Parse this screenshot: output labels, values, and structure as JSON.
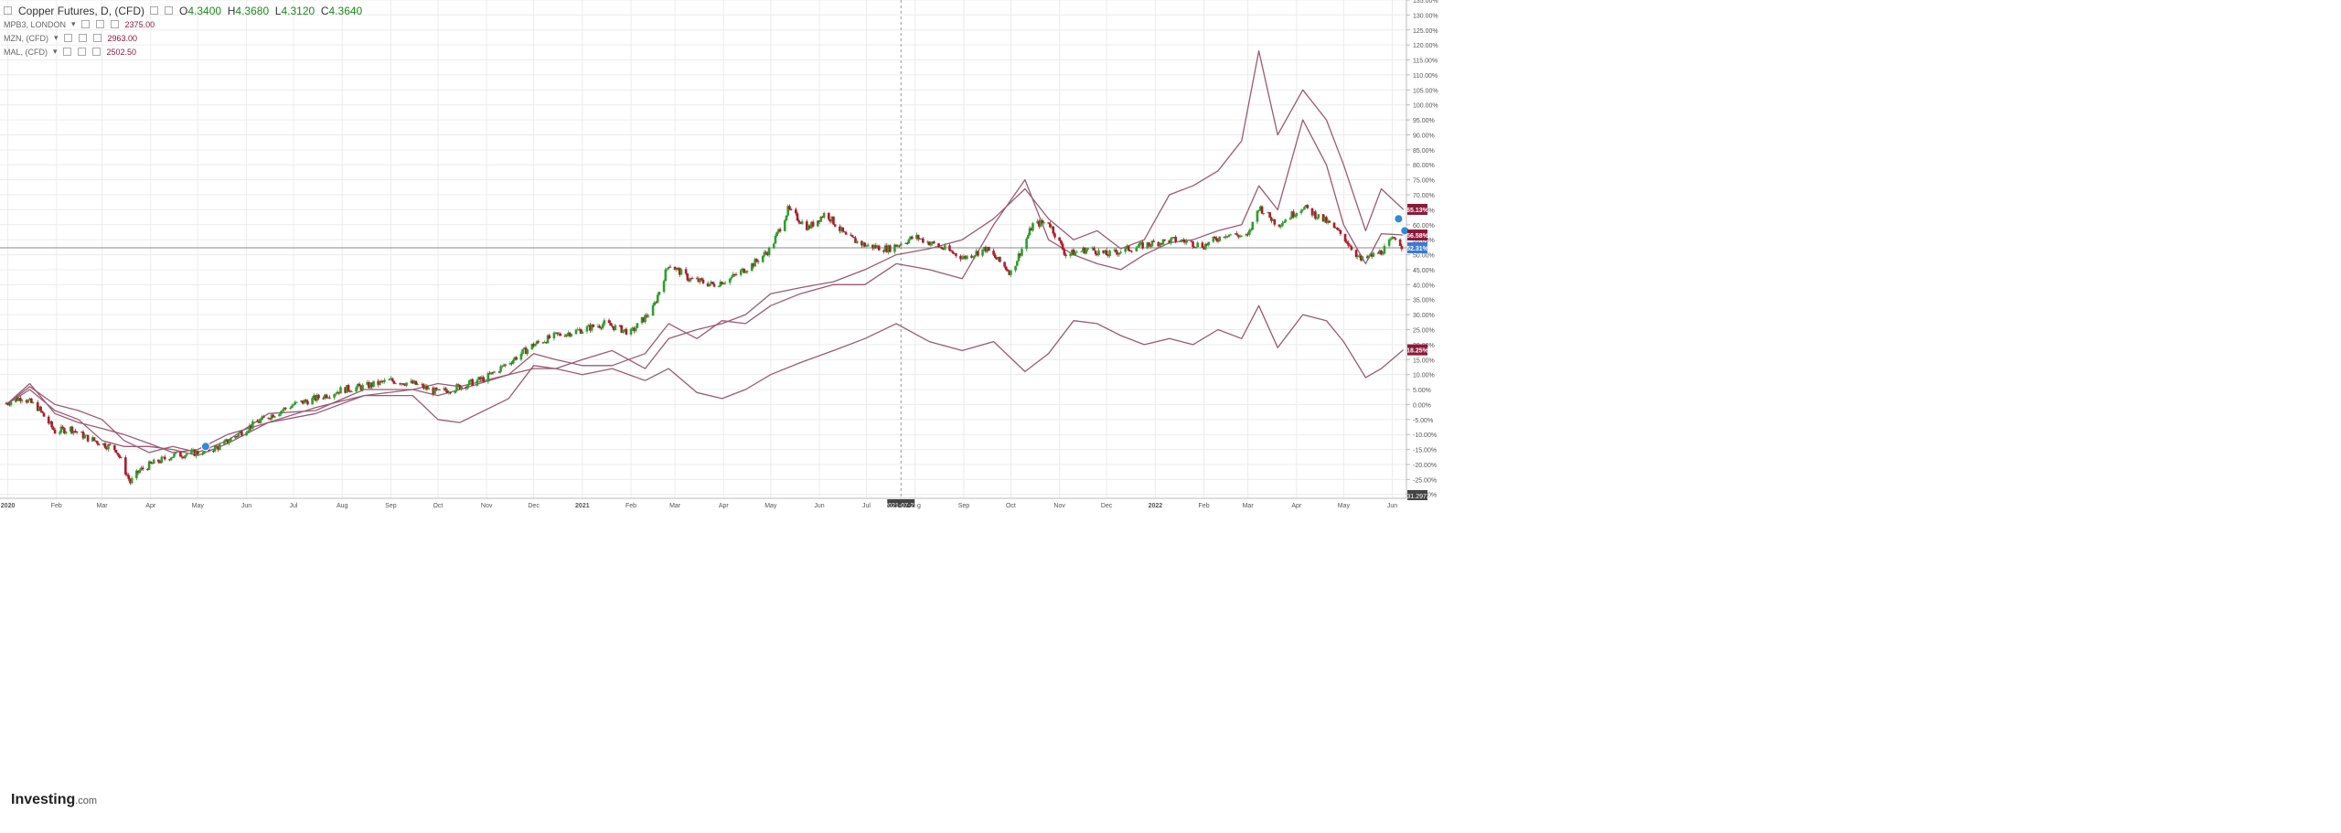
{
  "legend": {
    "main": {
      "title": "Copper Futures, D, (CFD)",
      "open_label": "O",
      "open": "4.3400",
      "high_label": "H",
      "high": "4.3680",
      "low_label": "L",
      "low": "4.3120",
      "close_label": "C",
      "close": "4.3640"
    },
    "overlays": [
      {
        "symbol": "MPB3, LONDON",
        "value": "2375.00"
      },
      {
        "symbol": "MZN, (CFD)",
        "value": "2963.00"
      },
      {
        "symbol": "MAL, (CFD)",
        "value": "2502.50"
      }
    ]
  },
  "watermark": {
    "brand": "Investing",
    "suffix": ".com"
  },
  "colors": {
    "up": "#2ca02c",
    "down": "#b01a2a",
    "overlay_line": "#9b5a74",
    "grid": "#ececec",
    "axis_text": "#555555",
    "badge_overlay": "#8b1a3a",
    "badge_price": "#3a7bd5",
    "crosshair": "#999999",
    "current_line": "#888888"
  },
  "chart_data": {
    "type": "line",
    "xlabel": "",
    "ylabel": "",
    "y_unit": "%",
    "ylim": [
      -31.3,
      135
    ],
    "x_range": [
      "2019-12-27",
      "2022-06-10"
    ],
    "grid": true,
    "y_ticks": [
      "135.00%",
      "130.00%",
      "125.00%",
      "120.00%",
      "115.00%",
      "110.00%",
      "105.00%",
      "100.00%",
      "95.00%",
      "90.00%",
      "85.00%",
      "80.00%",
      "75.00%",
      "70.00%",
      "65.00%",
      "60.00%",
      "55.00%",
      "50.00%",
      "45.00%",
      "40.00%",
      "35.00%",
      "30.00%",
      "25.00%",
      "20.00%",
      "15.00%",
      "10.00%",
      "5.00%",
      "0.00%",
      "-5.00%",
      "-10.00%",
      "-15.00%",
      "-20.00%",
      "-25.00%",
      "-30.00%"
    ],
    "x_ticks": [
      {
        "date": "2020-01-01",
        "label": "2020",
        "bold": true
      },
      {
        "date": "2020-02-01",
        "label": "Feb"
      },
      {
        "date": "2020-03-01",
        "label": "Mar"
      },
      {
        "date": "2020-04-01",
        "label": "Apr"
      },
      {
        "date": "2020-05-01",
        "label": "May"
      },
      {
        "date": "2020-06-01",
        "label": "Jun"
      },
      {
        "date": "2020-07-01",
        "label": "Jul"
      },
      {
        "date": "2020-08-01",
        "label": "Aug"
      },
      {
        "date": "2020-09-01",
        "label": "Sep"
      },
      {
        "date": "2020-10-01",
        "label": "Oct"
      },
      {
        "date": "2020-11-01",
        "label": "Nov"
      },
      {
        "date": "2020-12-01",
        "label": "Dec"
      },
      {
        "date": "2021-01-01",
        "label": "2021",
        "bold": true
      },
      {
        "date": "2021-02-01",
        "label": "Feb"
      },
      {
        "date": "2021-03-01",
        "label": "Mar"
      },
      {
        "date": "2021-04-01",
        "label": "Apr"
      },
      {
        "date": "2021-05-01",
        "label": "May"
      },
      {
        "date": "2021-06-01",
        "label": "Jun"
      },
      {
        "date": "2021-07-01",
        "label": "Jul"
      },
      {
        "date": "2021-08-01",
        "label": "Aug"
      },
      {
        "date": "2021-09-01",
        "label": "Sep"
      },
      {
        "date": "2021-10-01",
        "label": "Oct"
      },
      {
        "date": "2021-11-01",
        "label": "Nov"
      },
      {
        "date": "2021-12-01",
        "label": "Dec"
      },
      {
        "date": "2022-01-01",
        "label": "2022",
        "bold": true
      },
      {
        "date": "2022-02-01",
        "label": "Feb"
      },
      {
        "date": "2022-03-01",
        "label": "Mar"
      },
      {
        "date": "2022-04-01",
        "label": "Apr"
      },
      {
        "date": "2022-05-01",
        "label": "May"
      },
      {
        "date": "2022-06-01",
        "label": "Jun"
      }
    ],
    "crosshair": {
      "date": "2021-07-23",
      "label": "2021-07-23"
    },
    "current_value_line": 52.31,
    "low_label": {
      "value": -31.3,
      "label": "-31.2973"
    },
    "series": [
      {
        "type": "candlestick",
        "points": [
          [
            "2019-12-31",
            0.5
          ],
          [
            "2020-01-10",
            2.5
          ],
          [
            "2020-01-20",
            -1
          ],
          [
            "2020-01-31",
            -9
          ],
          [
            "2020-02-10",
            -8
          ],
          [
            "2020-02-20",
            -11
          ],
          [
            "2020-03-01",
            -13
          ],
          [
            "2020-03-10",
            -15
          ],
          [
            "2020-03-19",
            -26
          ],
          [
            "2020-03-25",
            -22
          ],
          [
            "2020-04-01",
            -20
          ],
          [
            "2020-04-15",
            -17
          ],
          [
            "2020-05-01",
            -16
          ],
          [
            "2020-05-15",
            -14
          ],
          [
            "2020-06-01",
            -8
          ],
          [
            "2020-06-15",
            -4
          ],
          [
            "2020-07-01",
            0
          ],
          [
            "2020-07-15",
            2
          ],
          [
            "2020-08-01",
            5
          ],
          [
            "2020-08-15",
            6
          ],
          [
            "2020-09-01",
            8
          ],
          [
            "2020-09-15",
            7
          ],
          [
            "2020-10-01",
            4
          ],
          [
            "2020-10-15",
            6
          ],
          [
            "2020-11-01",
            9
          ],
          [
            "2020-11-15",
            14
          ],
          [
            "2020-12-01",
            20
          ],
          [
            "2020-12-15",
            23
          ],
          [
            "2021-01-01",
            25
          ],
          [
            "2021-01-15",
            27
          ],
          [
            "2021-02-01",
            24
          ],
          [
            "2021-02-15",
            32
          ],
          [
            "2021-02-25",
            47
          ],
          [
            "2021-03-10",
            42
          ],
          [
            "2021-03-25",
            40
          ],
          [
            "2021-04-05",
            42
          ],
          [
            "2021-04-20",
            47
          ],
          [
            "2021-05-01",
            52
          ],
          [
            "2021-05-12",
            65
          ],
          [
            "2021-05-25",
            59
          ],
          [
            "2021-06-05",
            64
          ],
          [
            "2021-06-18",
            56
          ],
          [
            "2021-07-01",
            53
          ],
          [
            "2021-07-15",
            52
          ],
          [
            "2021-08-01",
            56
          ],
          [
            "2021-08-15",
            53
          ],
          [
            "2021-09-01",
            49
          ],
          [
            "2021-09-15",
            52
          ],
          [
            "2021-10-01",
            44
          ],
          [
            "2021-10-15",
            60
          ],
          [
            "2021-10-25",
            61
          ],
          [
            "2021-11-05",
            50
          ],
          [
            "2021-11-20",
            52
          ],
          [
            "2021-12-01",
            50
          ],
          [
            "2021-12-15",
            52
          ],
          [
            "2022-01-01",
            54
          ],
          [
            "2022-01-15",
            55
          ],
          [
            "2022-02-01",
            53
          ],
          [
            "2022-02-15",
            57
          ],
          [
            "2022-03-01",
            56
          ],
          [
            "2022-03-08",
            66
          ],
          [
            "2022-03-20",
            60
          ],
          [
            "2022-04-05",
            66
          ],
          [
            "2022-04-20",
            61
          ],
          [
            "2022-05-01",
            56
          ],
          [
            "2022-05-12",
            48
          ],
          [
            "2022-05-25",
            51
          ],
          [
            "2022-06-03",
            56
          ],
          [
            "2022-06-08",
            52.3
          ]
        ]
      },
      {
        "name": "MPB3, LONDON",
        "points": [
          [
            "2019-12-31",
            0
          ],
          [
            "2020-01-15",
            7
          ],
          [
            "2020-01-31",
            -3
          ],
          [
            "2020-02-15",
            -6
          ],
          [
            "2020-03-01",
            -8
          ],
          [
            "2020-03-15",
            -10
          ],
          [
            "2020-03-31",
            -13
          ],
          [
            "2020-04-15",
            -16
          ],
          [
            "2020-05-01",
            -15
          ],
          [
            "2020-05-20",
            -10
          ],
          [
            "2020-06-15",
            -6
          ],
          [
            "2020-07-15",
            -1
          ],
          [
            "2020-08-15",
            3
          ],
          [
            "2020-09-15",
            3
          ],
          [
            "2020-10-01",
            -5
          ],
          [
            "2020-10-15",
            -6
          ],
          [
            "2020-11-15",
            2
          ],
          [
            "2020-12-01",
            13
          ],
          [
            "2020-12-15",
            12
          ],
          [
            "2021-01-01",
            10
          ],
          [
            "2021-01-20",
            12
          ],
          [
            "2021-02-10",
            8
          ],
          [
            "2021-02-25",
            12
          ],
          [
            "2021-03-15",
            4
          ],
          [
            "2021-03-31",
            2
          ],
          [
            "2021-04-15",
            5
          ],
          [
            "2021-05-01",
            10
          ],
          [
            "2021-05-20",
            14
          ],
          [
            "2021-06-10",
            18
          ],
          [
            "2021-06-30",
            22
          ],
          [
            "2021-07-20",
            27
          ],
          [
            "2021-08-10",
            21
          ],
          [
            "2021-08-31",
            18
          ],
          [
            "2021-09-20",
            21
          ],
          [
            "2021-10-10",
            11
          ],
          [
            "2021-10-25",
            17
          ],
          [
            "2021-11-10",
            28
          ],
          [
            "2021-11-25",
            27
          ],
          [
            "2021-12-10",
            23
          ],
          [
            "2021-12-25",
            20
          ],
          [
            "2022-01-10",
            22
          ],
          [
            "2022-01-25",
            20
          ],
          [
            "2022-02-10",
            25
          ],
          [
            "2022-02-25",
            22
          ],
          [
            "2022-03-08",
            33
          ],
          [
            "2022-03-20",
            19
          ],
          [
            "2022-04-05",
            30
          ],
          [
            "2022-04-20",
            28
          ],
          [
            "2022-05-01",
            21
          ],
          [
            "2022-05-15",
            9
          ],
          [
            "2022-05-25",
            12
          ],
          [
            "2022-06-08",
            18.25
          ]
        ]
      },
      {
        "name": "MZN, (CFD)",
        "points": [
          [
            "2019-12-31",
            0
          ],
          [
            "2020-01-15",
            6
          ],
          [
            "2020-01-31",
            0
          ],
          [
            "2020-02-15",
            -2
          ],
          [
            "2020-03-01",
            -5
          ],
          [
            "2020-03-15",
            -12
          ],
          [
            "2020-03-31",
            -16
          ],
          [
            "2020-04-15",
            -14
          ],
          [
            "2020-05-01",
            -16
          ],
          [
            "2020-05-20",
            -12
          ],
          [
            "2020-06-15",
            -3
          ],
          [
            "2020-07-15",
            -2
          ],
          [
            "2020-08-15",
            5
          ],
          [
            "2020-09-15",
            5
          ],
          [
            "2020-10-01",
            3
          ],
          [
            "2020-10-15",
            5
          ],
          [
            "2020-11-15",
            10
          ],
          [
            "2020-12-01",
            17
          ],
          [
            "2020-12-15",
            15
          ],
          [
            "2021-01-01",
            13
          ],
          [
            "2021-01-20",
            13
          ],
          [
            "2021-02-10",
            17
          ],
          [
            "2021-02-25",
            27
          ],
          [
            "2021-03-15",
            22
          ],
          [
            "2021-03-31",
            28
          ],
          [
            "2021-04-15",
            27
          ],
          [
            "2021-05-01",
            33
          ],
          [
            "2021-05-20",
            37
          ],
          [
            "2021-06-10",
            40
          ],
          [
            "2021-06-30",
            40
          ],
          [
            "2021-07-20",
            47
          ],
          [
            "2021-08-10",
            45
          ],
          [
            "2021-08-31",
            42
          ],
          [
            "2021-09-20",
            60
          ],
          [
            "2021-10-10",
            75
          ],
          [
            "2021-10-25",
            55
          ],
          [
            "2021-11-10",
            50
          ],
          [
            "2021-11-25",
            47
          ],
          [
            "2021-12-10",
            45
          ],
          [
            "2021-12-25",
            50
          ],
          [
            "2022-01-10",
            54
          ],
          [
            "2022-01-25",
            55
          ],
          [
            "2022-02-10",
            58
          ],
          [
            "2022-02-25",
            60
          ],
          [
            "2022-03-08",
            73
          ],
          [
            "2022-03-20",
            65
          ],
          [
            "2022-04-05",
            95
          ],
          [
            "2022-04-20",
            80
          ],
          [
            "2022-05-01",
            60
          ],
          [
            "2022-05-15",
            47
          ],
          [
            "2022-05-25",
            57
          ],
          [
            "2022-06-08",
            56.58
          ]
        ]
      },
      {
        "name": "MAL, (CFD)",
        "points": [
          [
            "2019-12-31",
            0
          ],
          [
            "2020-01-15",
            5
          ],
          [
            "2020-01-31",
            -2
          ],
          [
            "2020-02-15",
            -5
          ],
          [
            "2020-03-01",
            -12
          ],
          [
            "2020-03-15",
            -14
          ],
          [
            "2020-03-31",
            -14
          ],
          [
            "2020-04-15",
            -15
          ],
          [
            "2020-05-01",
            -17
          ],
          [
            "2020-05-20",
            -13
          ],
          [
            "2020-06-15",
            -6
          ],
          [
            "2020-07-15",
            -3
          ],
          [
            "2020-08-15",
            3
          ],
          [
            "2020-09-15",
            5
          ],
          [
            "2020-10-01",
            7
          ],
          [
            "2020-10-15",
            6
          ],
          [
            "2020-11-15",
            10
          ],
          [
            "2020-12-01",
            12
          ],
          [
            "2020-12-15",
            12
          ],
          [
            "2021-01-01",
            15
          ],
          [
            "2021-01-20",
            18
          ],
          [
            "2021-02-10",
            12
          ],
          [
            "2021-02-25",
            22
          ],
          [
            "2021-03-15",
            25
          ],
          [
            "2021-03-31",
            27
          ],
          [
            "2021-04-15",
            30
          ],
          [
            "2021-05-01",
            37
          ],
          [
            "2021-05-20",
            39
          ],
          [
            "2021-06-10",
            41
          ],
          [
            "2021-06-30",
            45
          ],
          [
            "2021-07-20",
            50
          ],
          [
            "2021-08-10",
            52
          ],
          [
            "2021-08-31",
            55
          ],
          [
            "2021-09-20",
            62
          ],
          [
            "2021-10-10",
            72
          ],
          [
            "2021-10-25",
            62
          ],
          [
            "2021-11-10",
            55
          ],
          [
            "2021-11-25",
            58
          ],
          [
            "2021-12-10",
            52
          ],
          [
            "2021-12-25",
            55
          ],
          [
            "2022-01-10",
            70
          ],
          [
            "2022-01-25",
            73
          ],
          [
            "2022-02-10",
            78
          ],
          [
            "2022-02-25",
            88
          ],
          [
            "2022-03-08",
            118
          ],
          [
            "2022-03-20",
            90
          ],
          [
            "2022-04-05",
            105
          ],
          [
            "2022-04-20",
            95
          ],
          [
            "2022-05-01",
            80
          ],
          [
            "2022-05-15",
            58
          ],
          [
            "2022-05-25",
            72
          ],
          [
            "2022-06-08",
            65.13
          ]
        ]
      }
    ],
    "price_badges": [
      {
        "value": 65.13,
        "label": "65.13%",
        "kind": "overlay"
      },
      {
        "value": 56.58,
        "label": "56.58%",
        "kind": "overlay"
      },
      {
        "value": 52.31,
        "label": "52.31%",
        "kind": "price"
      },
      {
        "value": 18.25,
        "label": "18.25%",
        "kind": "overlay"
      }
    ],
    "event_markers": [
      {
        "date": "2020-05-06",
        "value": -14
      },
      {
        "date": "2022-06-05",
        "value": 62
      },
      {
        "date": "2022-06-09",
        "value": 58
      }
    ]
  }
}
